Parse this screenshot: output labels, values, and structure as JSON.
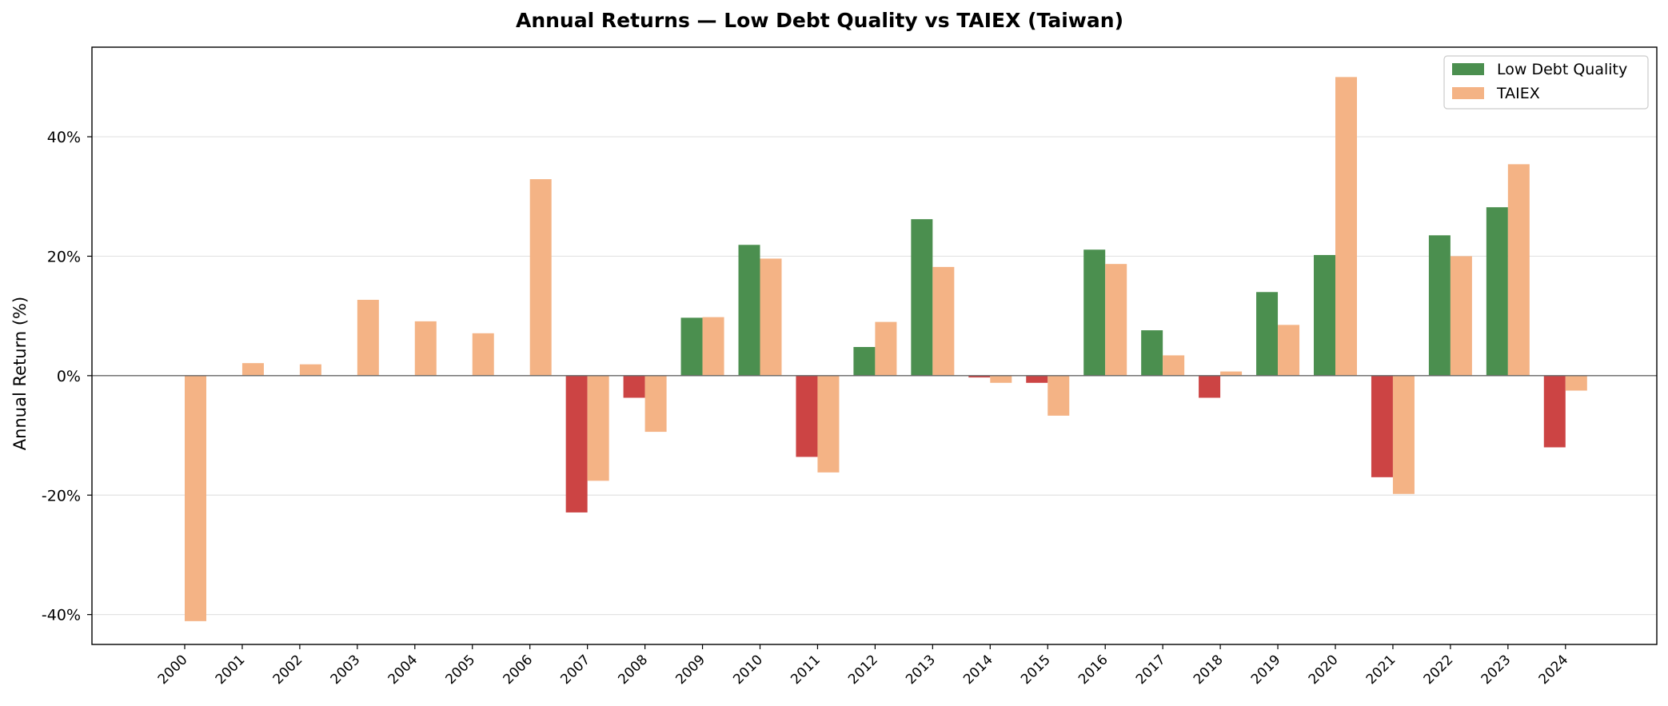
{
  "chart_data": {
    "type": "bar",
    "title": "Annual Returns — Low Debt Quality vs TAIEX (Taiwan)",
    "xlabel": "",
    "ylabel": "Annual Return (%)",
    "ylim": [
      -45,
      55
    ],
    "yticks": [
      -40,
      -20,
      0,
      20,
      40
    ],
    "ytick_labels": [
      "-40%",
      "-20%",
      "0%",
      "20%",
      "40%"
    ],
    "grid": "horizontal",
    "legend_position": "top-right",
    "categories": [
      "2000",
      "2001",
      "2002",
      "2003",
      "2004",
      "2005",
      "2006",
      "2007",
      "2008",
      "2009",
      "2010",
      "2011",
      "2012",
      "2013",
      "2014",
      "2015",
      "2016",
      "2017",
      "2018",
      "2019",
      "2020",
      "2021",
      "2022",
      "2023",
      "2024"
    ],
    "series": [
      {
        "name": "Low Debt Quality",
        "color": "#4b8f4f",
        "negative_color": "#cc4444",
        "values": [
          null,
          null,
          null,
          null,
          null,
          null,
          null,
          -22.9,
          -3.7,
          9.7,
          21.9,
          -13.6,
          4.8,
          26.2,
          -0.3,
          -1.2,
          21.1,
          7.6,
          -3.7,
          14.0,
          20.2,
          -17.0,
          23.5,
          28.2,
          -12.0
        ]
      },
      {
        "name": "TAIEX",
        "color": "#f4b385",
        "values": [
          -41.1,
          2.1,
          1.9,
          12.7,
          9.1,
          7.1,
          32.9,
          -17.6,
          -9.4,
          9.8,
          19.6,
          -16.2,
          9.0,
          18.2,
          -1.2,
          -6.7,
          18.7,
          3.4,
          0.7,
          8.5,
          50.0,
          -19.8,
          20.0,
          35.4,
          -2.5
        ]
      }
    ]
  }
}
